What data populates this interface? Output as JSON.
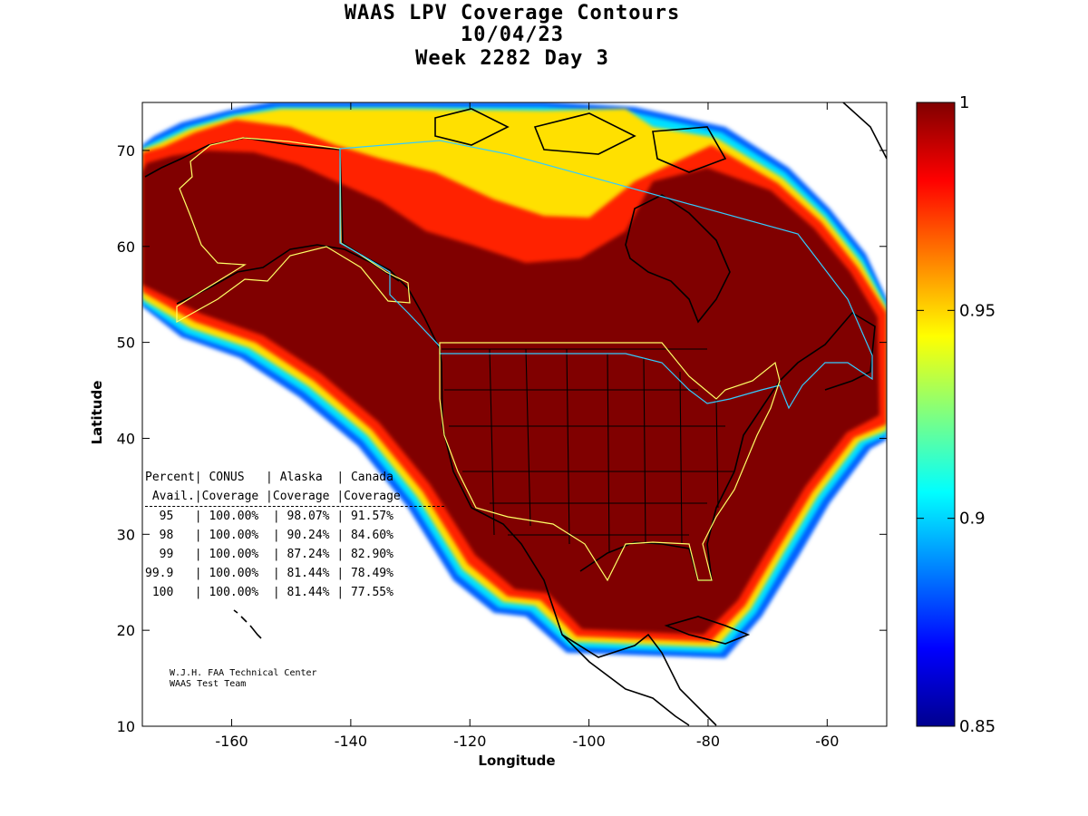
{
  "title": {
    "line1": "WAAS LPV Coverage Contours",
    "line2": "10/04/23",
    "line3": "Week 2282 Day 3"
  },
  "axes": {
    "xlabel": "Longitude",
    "ylabel": "Latitude",
    "xlim": [
      -175,
      -50
    ],
    "ylim": [
      10,
      75
    ],
    "xticks": [
      "-160",
      "-140",
      "-120",
      "-100",
      "-80",
      "-60"
    ],
    "yticks": [
      "10",
      "20",
      "30",
      "40",
      "50",
      "60",
      "70"
    ]
  },
  "colorbar": {
    "min": 0.85,
    "max": 1,
    "ticks": [
      "1",
      "0.95",
      "0.9",
      "0.85"
    ],
    "colormap": "jet"
  },
  "table": {
    "header1": "Percent| CONUS   | Alaska  | Canada",
    "header2": " Avail.|Coverage |Coverage |Coverage",
    "rows": [
      "  95   | 100.00%  | 98.07% | 91.57%",
      "  98   | 100.00%  | 90.24% | 84.60%",
      "  99   | 100.00%  | 87.24% | 82.90%",
      "99.9   | 100.00%  | 81.44% | 78.49%",
      " 100   | 100.00%  | 81.44% | 77.55%"
    ]
  },
  "credit": {
    "line1": "W.J.H. FAA Technical Center",
    "line2": "WAAS Test Team"
  },
  "colors": {
    "full_coverage": "#800000",
    "background": "#ffffff",
    "outline": "#000000",
    "conus_boundary": "#ffff66",
    "canada_boundary": "#33ccff"
  }
}
